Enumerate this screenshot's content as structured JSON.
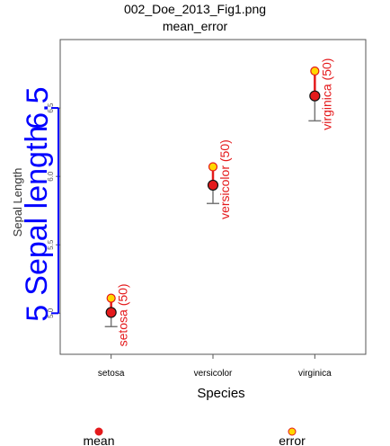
{
  "chart_data": {
    "type": "dot-error",
    "title": "002_Doe_2013_Fig1.png",
    "subtitle": "mean_error",
    "x_label": "Species",
    "y_label": "Sepal Length",
    "categories": [
      "setosa",
      "versicolor",
      "virginica"
    ],
    "point_labels": [
      "setosa (50)",
      "versicolor (50)",
      "virginica (50)"
    ],
    "series": [
      {
        "name": "mean",
        "color": "#e41a1c",
        "values": [
          5.006,
          5.936,
          6.588
        ]
      },
      {
        "name": "error",
        "color": "#ffd700",
        "values": [
          5.11,
          6.07,
          6.77
        ]
      }
    ],
    "ylim": [
      4.7,
      7.0
    ],
    "yticks": [
      {
        "value": 5,
        "label": "5.0"
      },
      5.5,
      {
        "value": 6,
        "label": "6.0"
      },
      6.5
    ],
    "overlay_axis": {
      "label": "Sepal length",
      "color": "#0000ff",
      "ticks": [
        5,
        6.5
      ]
    }
  }
}
